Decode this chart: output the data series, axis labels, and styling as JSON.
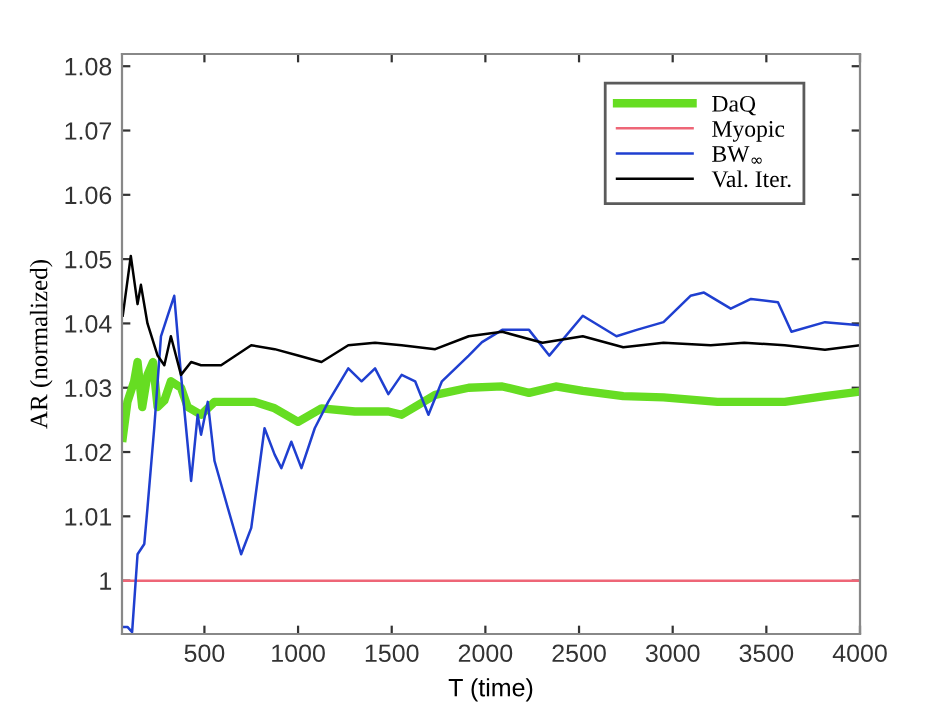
{
  "chart_data": {
    "type": "line",
    "xlabel": "T (time)",
    "ylabel": "AR (normalized)",
    "xlim": [
      60,
      4000
    ],
    "ylim": [
      0.9917,
      1.0819
    ],
    "xticks": [
      500,
      1000,
      1500,
      2000,
      2500,
      3000,
      3500,
      4000
    ],
    "yticks": [
      1,
      1.01,
      1.02,
      1.03,
      1.04,
      1.05,
      1.06,
      1.07,
      1.08
    ],
    "grid": false,
    "legend": "top right",
    "marker": "none",
    "line_style": "solid",
    "series": [
      {
        "name": "DaQ",
        "color": "#66dd22",
        "x": [
          64,
          89,
          125,
          143,
          168,
          196,
          225,
          250,
          286,
          321,
          375,
          411,
          482,
          554,
          625,
          768,
          875,
          1000,
          1125,
          1303,
          1482,
          1553,
          1732,
          1911,
          2090,
          2233,
          2376,
          2520,
          2736,
          2951,
          3239,
          3598,
          3813,
          4000
        ],
        "values": [
          1.0222,
          1.0278,
          1.031,
          1.034,
          1.027,
          1.032,
          1.034,
          1.027,
          1.028,
          1.031,
          1.03,
          1.027,
          1.0258,
          1.0278,
          1.0278,
          1.0278,
          1.0268,
          1.0247,
          1.0268,
          1.0263,
          1.0263,
          1.0258,
          1.0289,
          1.03,
          1.0302,
          1.0292,
          1.0302,
          1.0295,
          1.0287,
          1.0285,
          1.0278,
          1.0278,
          1.0287,
          1.0294
        ]
      },
      {
        "name": "Myopic",
        "color": "#ee6677",
        "x": [
          60,
          4000
        ],
        "values": [
          1,
          1
        ]
      },
      {
        "name": "BW$_{∞}$",
        "color": "#1f3fd0",
        "x": [
          64,
          89,
          114,
          143,
          179,
          196,
          232,
          268,
          304,
          339,
          375,
          429,
          464,
          482,
          518,
          554,
          625,
          696,
          750,
          821,
          875,
          911,
          964,
          1018,
          1089,
          1161,
          1268,
          1339,
          1411,
          1482,
          1553,
          1625,
          1696,
          1768,
          1911,
          1982,
          2090,
          2233,
          2341,
          2520,
          2700,
          2808,
          2951,
          3095,
          3167,
          3310,
          3418,
          3562,
          3634,
          3813,
          4000
        ],
        "values": [
          0.9928,
          0.9928,
          0.992,
          1.0041,
          1.0057,
          1.0113,
          1.0237,
          1.038,
          1.0412,
          1.0443,
          1.032,
          1.0155,
          1.0258,
          1.0227,
          1.0278,
          1.0186,
          1.0113,
          1.0041,
          1.0082,
          1.0237,
          1.0196,
          1.0175,
          1.0216,
          1.0175,
          1.0237,
          1.0278,
          1.033,
          1.031,
          1.033,
          1.029,
          1.032,
          1.031,
          1.0258,
          1.031,
          1.035,
          1.0371,
          1.039,
          1.039,
          1.035,
          1.0412,
          1.038,
          1.039,
          1.0402,
          1.0443,
          1.0448,
          1.0423,
          1.0438,
          1.0433,
          1.0387,
          1.0402,
          1.0397
        ]
      },
      {
        "name": "Val. Iter.",
        "color": "#000000",
        "x": [
          64,
          107,
          143,
          161,
          196,
          250,
          286,
          321,
          375,
          429,
          482,
          589,
          750,
          875,
          1000,
          1125,
          1268,
          1411,
          1553,
          1732,
          1911,
          2090,
          2305,
          2520,
          2736,
          2951,
          3203,
          3382,
          3598,
          3813,
          4000
        ],
        "values": [
          1.0412,
          1.0505,
          1.043,
          1.046,
          1.04,
          1.035,
          1.0335,
          1.038,
          1.032,
          1.034,
          1.0335,
          1.0335,
          1.0366,
          1.036,
          1.035,
          1.034,
          1.0366,
          1.037,
          1.0366,
          1.036,
          1.038,
          1.0387,
          1.037,
          1.038,
          1.0363,
          1.037,
          1.0366,
          1.037,
          1.0366,
          1.0359,
          1.0366
        ]
      }
    ]
  }
}
